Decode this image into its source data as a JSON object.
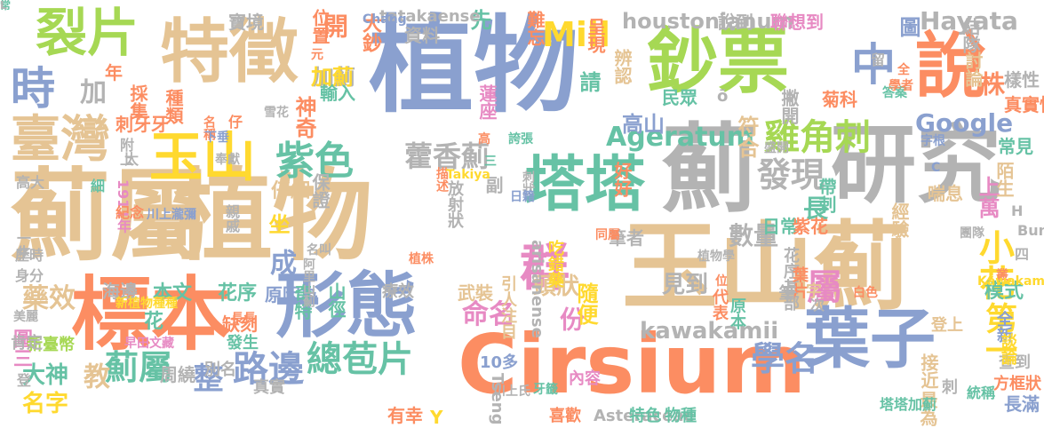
{
  "palette": {
    "blue": "#8aa0cf",
    "orange": "#fc8d62",
    "green": "#a6d854",
    "tan": "#e5c494",
    "teal": "#66c2a5",
    "pink": "#e78ac3",
    "yellow": "#ffd92f",
    "gray": "#b3b3b3"
  },
  "words": [
    {
      "text": "植物",
      "color": "blue"
    },
    {
      "text": "植物",
      "color": "tan"
    },
    {
      "text": "薊屬",
      "color": "tan"
    },
    {
      "text": "玉山薊",
      "color": "tan"
    },
    {
      "text": "薊",
      "color": "gray"
    },
    {
      "text": "研究",
      "color": "gray"
    },
    {
      "text": "Cirsium",
      "color": "orange"
    },
    {
      "text": "標本",
      "color": "orange"
    },
    {
      "text": "形態",
      "color": "blue"
    },
    {
      "text": "特徵",
      "color": "tan"
    },
    {
      "text": "鈔票",
      "color": "green"
    },
    {
      "text": "玉山",
      "color": "yellow"
    },
    {
      "text": "葉子",
      "color": "blue"
    },
    {
      "text": "說",
      "color": "orange"
    },
    {
      "text": "塔塔",
      "color": "teal"
    },
    {
      "text": "裂片",
      "color": "green"
    },
    {
      "text": "臺灣",
      "color": "tan"
    },
    {
      "text": "時",
      "color": "blue"
    },
    {
      "text": "中",
      "color": "blue"
    },
    {
      "text": "總苞片",
      "color": "teal"
    },
    {
      "text": "紫色",
      "color": "teal"
    },
    {
      "text": "群",
      "color": "pink"
    },
    {
      "text": "雞角刺",
      "color": "green"
    },
    {
      "text": "發現",
      "color": "gray"
    },
    {
      "text": "藿香薊",
      "color": "gray"
    },
    {
      "text": "小花",
      "color": "yellow"
    },
    {
      "text": "第一",
      "color": "yellow"
    },
    {
      "text": "學名",
      "color": "blue"
    },
    {
      "text": "路邊",
      "color": "blue"
    },
    {
      "text": "Mill",
      "color": "yellow"
    },
    {
      "text": "Ageratum",
      "color": "teal"
    },
    {
      "text": "Hayata",
      "color": "gray"
    },
    {
      "text": "Google",
      "color": "blue"
    },
    {
      "text": "kawakamii",
      "color": "gray"
    },
    {
      "text": "houstonianum",
      "color": "gray"
    },
    {
      "text": "命名",
      "color": "pink"
    },
    {
      "text": "頭狀",
      "color": "tan"
    },
    {
      "text": "見到",
      "color": "gray"
    },
    {
      "text": "薊屬",
      "color": "teal"
    },
    {
      "text": "整",
      "color": "blue"
    },
    {
      "text": "教",
      "color": "tan"
    },
    {
      "text": "大神",
      "color": "teal"
    },
    {
      "text": "名字",
      "color": "yellow"
    },
    {
      "text": "藥效",
      "color": "tan"
    },
    {
      "text": "開",
      "color": "orange"
    },
    {
      "text": "加",
      "color": "gray"
    },
    {
      "text": "先",
      "color": "teal"
    },
    {
      "text": "圖",
      "color": "blue"
    },
    {
      "text": "高山",
      "color": "blue"
    },
    {
      "text": "符合",
      "color": "tan"
    },
    {
      "text": "神奇",
      "color": "orange"
    },
    {
      "text": "加薊",
      "color": "gray"
    },
    {
      "text": "加薊",
      "color": "yellow"
    },
    {
      "text": "屬",
      "color": "pink"
    },
    {
      "text": "份",
      "color": "pink"
    },
    {
      "text": "成",
      "color": "blue"
    },
    {
      "text": "坐",
      "color": "yellow"
    },
    {
      "text": "長",
      "color": "teal"
    },
    {
      "text": "數量",
      "color": "gray"
    },
    {
      "text": "隨便",
      "color": "yellow"
    },
    {
      "text": "請",
      "color": "teal"
    },
    {
      "text": "株",
      "color": "orange"
    },
    {
      "text": "上萬",
      "color": "pink"
    },
    {
      "text": "仔細",
      "color": "tan"
    },
    {
      "text": "花序",
      "color": "teal"
    },
    {
      "text": "本文",
      "color": "teal"
    },
    {
      "text": "模式",
      "color": "teal"
    },
    {
      "text": "說到",
      "color": "gray"
    },
    {
      "text": "聯想到",
      "color": "pink"
    },
    {
      "text": "資料",
      "color": "gray"
    },
    {
      "text": "tatakaense",
      "color": "gray"
    },
    {
      "text": "大鈔",
      "color": "orange"
    },
    {
      "text": "難忘",
      "color": "orange"
    },
    {
      "text": "呈現",
      "color": "orange"
    },
    {
      "text": "辨認",
      "color": "tan"
    },
    {
      "text": "結隊",
      "color": "gray"
    },
    {
      "text": "討論",
      "color": "tan"
    },
    {
      "text": "寶境",
      "color": "gray"
    },
    {
      "text": "位置",
      "color": "orange"
    },
    {
      "text": "年",
      "color": "orange"
    },
    {
      "text": "採集",
      "color": "orange"
    },
    {
      "text": "刺牙牙",
      "color": "orange"
    },
    {
      "text": "種類",
      "color": "orange"
    },
    {
      "text": "輸入",
      "color": "teal"
    },
    {
      "text": "蓮座",
      "color": "pink"
    },
    {
      "text": "民眾",
      "color": "teal"
    },
    {
      "text": "撇開",
      "color": "gray"
    },
    {
      "text": "菊科",
      "color": "orange"
    },
    {
      "text": "樣性",
      "color": "gray"
    },
    {
      "text": "真實性",
      "color": "orange"
    },
    {
      "text": "常見",
      "color": "teal"
    },
    {
      "text": "陌生",
      "color": "tan"
    },
    {
      "text": "好好",
      "color": "orange"
    },
    {
      "text": "副",
      "color": "gray"
    },
    {
      "text": "放射狀",
      "color": "gray"
    },
    {
      "text": "保證",
      "color": "gray"
    },
    {
      "text": "帶刺",
      "color": "teal"
    },
    {
      "text": "日常",
      "color": "teal"
    },
    {
      "text": "紫花",
      "color": "orange"
    },
    {
      "text": "喘息",
      "color": "tan"
    },
    {
      "text": "經驗",
      "color": "tan"
    },
    {
      "text": "筆者",
      "color": "gray"
    },
    {
      "text": "原因為",
      "color": "blue"
    },
    {
      "text": "arisanense",
      "color": "gray"
    },
    {
      "text": "吃錯藥",
      "color": "yellow"
    },
    {
      "text": "花序基部",
      "color": "gray"
    },
    {
      "text": "葉片",
      "color": "orange"
    },
    {
      "text": "筆",
      "color": "gray"
    },
    {
      "text": "字",
      "color": "tan"
    },
    {
      "text": "代表",
      "color": "orange"
    },
    {
      "text": "原本",
      "color": "teal"
    },
    {
      "text": "全新",
      "color": "blue"
    },
    {
      "text": "登上",
      "color": "tan"
    },
    {
      "text": "奇特",
      "color": "teal"
    },
    {
      "text": "山徑",
      "color": "teal"
    },
    {
      "text": "療效",
      "color": "gray"
    },
    {
      "text": "武裝",
      "color": "tan"
    },
    {
      "text": "引人注目",
      "color": "tan"
    },
    {
      "text": "海邊",
      "color": "gray"
    },
    {
      "text": "圖三",
      "color": "pink"
    },
    {
      "text": "新臺幣",
      "color": "green"
    },
    {
      "text": "花",
      "color": "teal"
    },
    {
      "text": "缺刻",
      "color": "orange"
    },
    {
      "text": "發生",
      "color": "teal"
    },
    {
      "text": "別名",
      "color": "gray"
    },
    {
      "text": "真實",
      "color": "gray"
    },
    {
      "text": "周繞",
      "color": "gray"
    },
    {
      "text": "肯定",
      "color": "gray"
    },
    {
      "text": "10多",
      "color": "blue"
    },
    {
      "text": "Tseng",
      "color": "gray"
    },
    {
      "text": "內容",
      "color": "pink"
    },
    {
      "text": "接近",
      "color": "tan"
    },
    {
      "text": "查到",
      "color": "gray"
    },
    {
      "text": "談論",
      "color": "yellow"
    },
    {
      "text": "最為",
      "color": "tan"
    },
    {
      "text": "刺",
      "color": "gray"
    },
    {
      "text": "統稱",
      "color": "teal"
    },
    {
      "text": "長滿",
      "color": "blue"
    },
    {
      "text": "方框狀",
      "color": "orange"
    },
    {
      "text": "Y",
      "color": "yellow"
    },
    {
      "text": "喜歡",
      "color": "orange"
    },
    {
      "text": "Asteraceae",
      "color": "gray"
    },
    {
      "text": "特色",
      "color": "teal"
    },
    {
      "text": "物種",
      "color": "teal"
    },
    {
      "text": "有幸",
      "color": "orange"
    },
    {
      "text": "塔塔加薊",
      "color": "teal"
    },
    {
      "text": "歷時",
      "color": "gray"
    },
    {
      "text": "一生",
      "color": "gray"
    },
    {
      "text": "身分",
      "color": "gray"
    },
    {
      "text": "登",
      "color": "gray"
    },
    {
      "text": "高大",
      "color": "gray"
    },
    {
      "text": "細",
      "color": "teal"
    },
    {
      "text": "1911年",
      "color": "pink"
    },
    {
      "text": "紀念",
      "color": "orange"
    },
    {
      "text": "川上瀧彌",
      "color": "blue"
    },
    {
      "text": "親戚",
      "color": "gray"
    },
    {
      "text": "名叫",
      "color": "gray"
    },
    {
      "text": "阿里山薊",
      "color": "gray"
    },
    {
      "text": "植株",
      "color": "orange"
    },
    {
      "text": "美麗",
      "color": "gray"
    },
    {
      "text": "新植物種種",
      "color": "yellow"
    },
    {
      "text": "早田文藏",
      "color": "pink"
    },
    {
      "text": "長長",
      "color": "orange"
    },
    {
      "text": "川上氏",
      "color": "gray"
    },
    {
      "text": "牙籤",
      "color": "teal"
    },
    {
      "text": "叢",
      "color": "orange"
    },
    {
      "text": "Kawakami",
      "color": "yellow"
    },
    {
      "text": "白色",
      "color": "orange"
    },
    {
      "text": "次",
      "color": "gray"
    },
    {
      "text": "仔",
      "color": "orange"
    },
    {
      "text": "雪花",
      "color": "gray"
    },
    {
      "text": "名稱",
      "color": "orange"
    },
    {
      "text": "下垂",
      "color": "blue"
    },
    {
      "text": "奉獻",
      "color": "gray"
    },
    {
      "text": "太",
      "color": "gray"
    },
    {
      "text": "附上",
      "color": "gray"
    },
    {
      "text": "高",
      "color": "orange"
    },
    {
      "text": "三",
      "color": "teal"
    },
    {
      "text": "刺狀",
      "color": "gray"
    },
    {
      "text": "日籍",
      "color": "blue"
    },
    {
      "text": "描述",
      "color": "orange"
    },
    {
      "text": "Takiya",
      "color": "yellow"
    },
    {
      "text": "誇張",
      "color": "teal"
    },
    {
      "text": "元",
      "color": "orange"
    },
    {
      "text": "Chang",
      "color": "blue"
    },
    {
      "text": "ō",
      "color": "gray"
    },
    {
      "text": "留",
      "color": "gray"
    },
    {
      "text": "答案",
      "color": "teal"
    },
    {
      "text": "全",
      "color": "orange"
    },
    {
      "text": "學者",
      "color": "orange"
    },
    {
      "text": "字根",
      "color": "blue"
    },
    {
      "text": "C",
      "color": "blue"
    },
    {
      "text": "盛開",
      "color": "gray"
    },
    {
      "text": "植物學",
      "color": "gray"
    },
    {
      "text": "位",
      "color": "orange"
    },
    {
      "text": "同屬",
      "color": "orange"
    },
    {
      "text": "團隊",
      "color": "gray"
    },
    {
      "text": "H",
      "color": "gray"
    },
    {
      "text": "Bunz",
      "color": "gray"
    },
    {
      "text": "四",
      "color": "gray"
    },
    {
      "text": "常",
      "color": "teal"
    },
    {
      "text": "L",
      "color": "gray"
    }
  ]
}
